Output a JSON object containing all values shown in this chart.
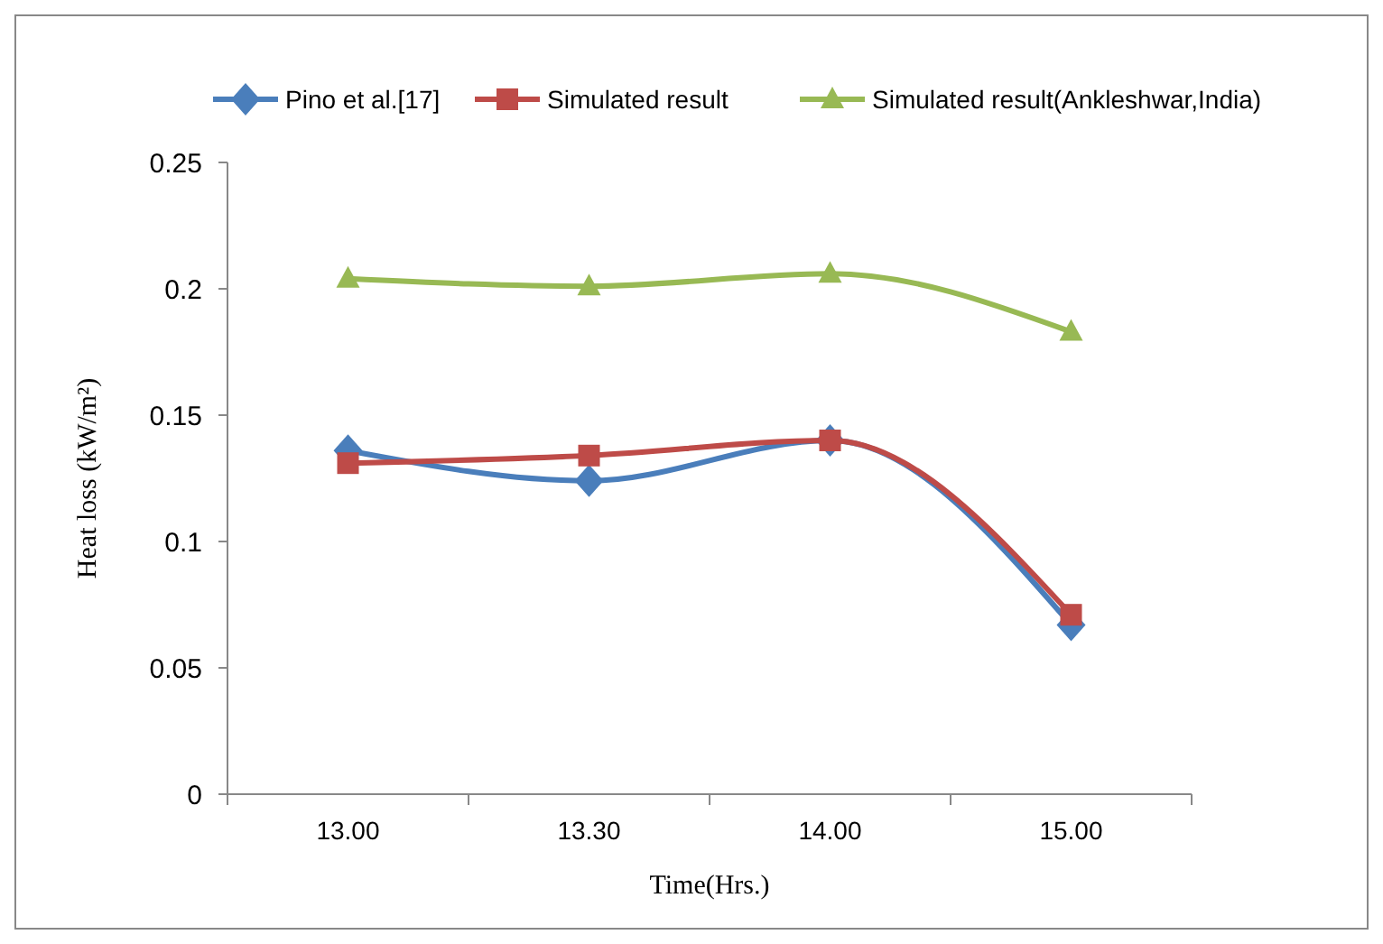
{
  "chart_data": {
    "type": "line",
    "xlabel": "Time(Hrs.)",
    "ylabel": "Heat loss (kW/m²)",
    "categories": [
      "13.00",
      "13.30",
      "14.00",
      "15.00"
    ],
    "series": [
      {
        "name": "Pino et al.[17]",
        "color": "#4a7ebb",
        "marker": "diamond",
        "values": [
          0.136,
          0.124,
          0.14,
          0.067
        ]
      },
      {
        "name": "Simulated result",
        "color": "#be4b48",
        "marker": "square",
        "values": [
          0.131,
          0.134,
          0.14,
          0.071
        ]
      },
      {
        "name": "Simulated result(Ankleshwar,India)",
        "color": "#98b954",
        "marker": "triangle",
        "values": [
          0.204,
          0.201,
          0.206,
          0.183
        ]
      }
    ],
    "ylim": [
      0,
      0.25
    ],
    "yticks": [
      0,
      0.05,
      {
        "value": 0.1,
        "label": "0.1"
      },
      0.15,
      {
        "value": 0.2,
        "label": "0.2"
      },
      0.25
    ],
    "grid": false,
    "legend": "top",
    "line_style": "solid"
  }
}
